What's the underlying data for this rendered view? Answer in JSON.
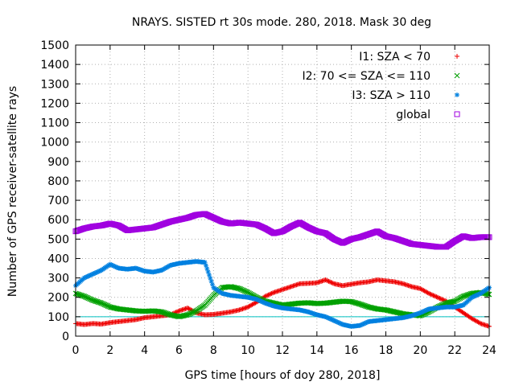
{
  "chart_data": {
    "type": "scatter",
    "title": "NRAYS. SISTED rt 30s mode. 280, 2018. Mask 30 deg",
    "xlabel": "GPS time [hours of doy 280, 2018]",
    "ylabel": "Number of GPS receiver-satellite rays",
    "xlim": [
      0,
      24
    ],
    "ylim": [
      0,
      1500
    ],
    "xticks": [
      0,
      2,
      4,
      6,
      8,
      10,
      12,
      14,
      16,
      18,
      20,
      22,
      24
    ],
    "yticks": [
      0,
      100,
      200,
      300,
      400,
      500,
      600,
      700,
      800,
      900,
      1000,
      1100,
      1200,
      1300,
      1400,
      1500
    ],
    "legend_position": "top-right",
    "reference_line": {
      "y": 100,
      "color": "#00c0c0"
    },
    "series": [
      {
        "name": "I1: SZA < 70",
        "marker": "+",
        "color": "#ee0000",
        "x": [
          0,
          0.5,
          1,
          1.5,
          2,
          2.5,
          3,
          3.5,
          4,
          4.5,
          5,
          5.5,
          6,
          6.5,
          7,
          7.5,
          8,
          8.5,
          9,
          9.5,
          10,
          10.5,
          11,
          11.5,
          12,
          12.5,
          13,
          13.5,
          14,
          14.5,
          15,
          15.5,
          16,
          16.5,
          17,
          17.5,
          18,
          18.5,
          19,
          19.5,
          20,
          20.5,
          21,
          21.5,
          22,
          22.5,
          23,
          23.5,
          24
        ],
        "y": [
          65,
          60,
          65,
          62,
          70,
          75,
          80,
          85,
          95,
          100,
          105,
          110,
          130,
          145,
          120,
          110,
          112,
          118,
          125,
          135,
          150,
          175,
          205,
          225,
          240,
          255,
          270,
          272,
          275,
          290,
          270,
          260,
          268,
          275,
          280,
          290,
          285,
          280,
          270,
          255,
          245,
          220,
          200,
          180,
          150,
          120,
          90,
          65,
          50
        ]
      },
      {
        "name": "I2: 70 <= SZA <= 110",
        "marker": "x",
        "color": "#00a000",
        "x": [
          0,
          0.5,
          1,
          1.5,
          2,
          2.5,
          3,
          3.5,
          4,
          4.5,
          5,
          5.5,
          6,
          6.5,
          7,
          7.5,
          8,
          8.5,
          9,
          9.5,
          10,
          10.5,
          11,
          11.5,
          12,
          12.5,
          13,
          13.5,
          14,
          14.5,
          15,
          15.5,
          16,
          16.5,
          17,
          17.5,
          18,
          18.5,
          19,
          19.5,
          20,
          20.5,
          21,
          21.5,
          22,
          22.5,
          23,
          23.5,
          24
        ],
        "y": [
          220,
          205,
          185,
          170,
          150,
          140,
          135,
          130,
          128,
          130,
          125,
          110,
          100,
          110,
          130,
          160,
          210,
          250,
          255,
          245,
          225,
          200,
          180,
          170,
          160,
          165,
          170,
          172,
          168,
          170,
          175,
          180,
          178,
          165,
          150,
          140,
          135,
          125,
          115,
          110,
          105,
          125,
          150,
          170,
          180,
          205,
          220,
          225,
          215
        ]
      },
      {
        "name": "I3: SZA > 110",
        "marker": "*",
        "color": "#0080e0",
        "x": [
          0,
          0.5,
          1,
          1.5,
          2,
          2.5,
          3,
          3.5,
          4,
          4.5,
          5,
          5.5,
          6,
          6.5,
          7,
          7.5,
          8,
          8.5,
          9,
          9.5,
          10,
          10.5,
          11,
          11.5,
          12,
          12.5,
          13,
          13.5,
          14,
          14.5,
          15,
          15.5,
          16,
          16.5,
          17,
          17.5,
          18,
          18.5,
          19,
          19.5,
          20,
          20.5,
          21,
          21.5,
          22,
          22.5,
          23,
          23.5,
          24
        ],
        "y": [
          260,
          300,
          320,
          340,
          370,
          350,
          345,
          350,
          335,
          330,
          340,
          365,
          375,
          380,
          385,
          380,
          250,
          220,
          210,
          205,
          200,
          190,
          170,
          155,
          145,
          140,
          135,
          125,
          110,
          100,
          80,
          60,
          50,
          55,
          75,
          80,
          85,
          90,
          95,
          105,
          120,
          140,
          145,
          150,
          150,
          160,
          200,
          220,
          250
        ]
      },
      {
        "name": "global",
        "marker": "square",
        "color": "#a000e0",
        "x": [
          0,
          0.5,
          1,
          1.5,
          2,
          2.5,
          3,
          3.5,
          4,
          4.5,
          5,
          5.5,
          6,
          6.5,
          7,
          7.5,
          8,
          8.5,
          9,
          9.5,
          10,
          10.5,
          11,
          11.5,
          12,
          12.5,
          13,
          13.5,
          14,
          14.5,
          15,
          15.5,
          16,
          16.5,
          17,
          17.5,
          18,
          18.5,
          19,
          19.5,
          20,
          20.5,
          21,
          21.5,
          22,
          22.5,
          23,
          23.5,
          24
        ],
        "y": [
          540,
          555,
          565,
          570,
          580,
          570,
          545,
          550,
          555,
          560,
          575,
          590,
          600,
          610,
          625,
          630,
          610,
          590,
          580,
          585,
          580,
          575,
          555,
          530,
          540,
          565,
          585,
          560,
          540,
          530,
          500,
          480,
          500,
          510,
          525,
          540,
          515,
          505,
          490,
          475,
          470,
          465,
          460,
          460,
          490,
          515,
          505,
          510,
          510
        ]
      }
    ]
  }
}
